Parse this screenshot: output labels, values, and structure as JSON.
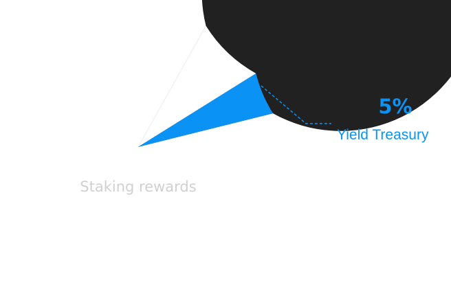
{
  "chart_data": {
    "type": "pie",
    "slices": [
      {
        "label": "Staking rewards",
        "value": 87,
        "color": "#212121"
      },
      {
        "label": "",
        "value": 8,
        "color": "#ffffff"
      },
      {
        "label": "Yield Treasury",
        "value": 5,
        "value_label": "5%",
        "color": "#0a93f5"
      }
    ],
    "start_angle_deg": -14
  }
}
